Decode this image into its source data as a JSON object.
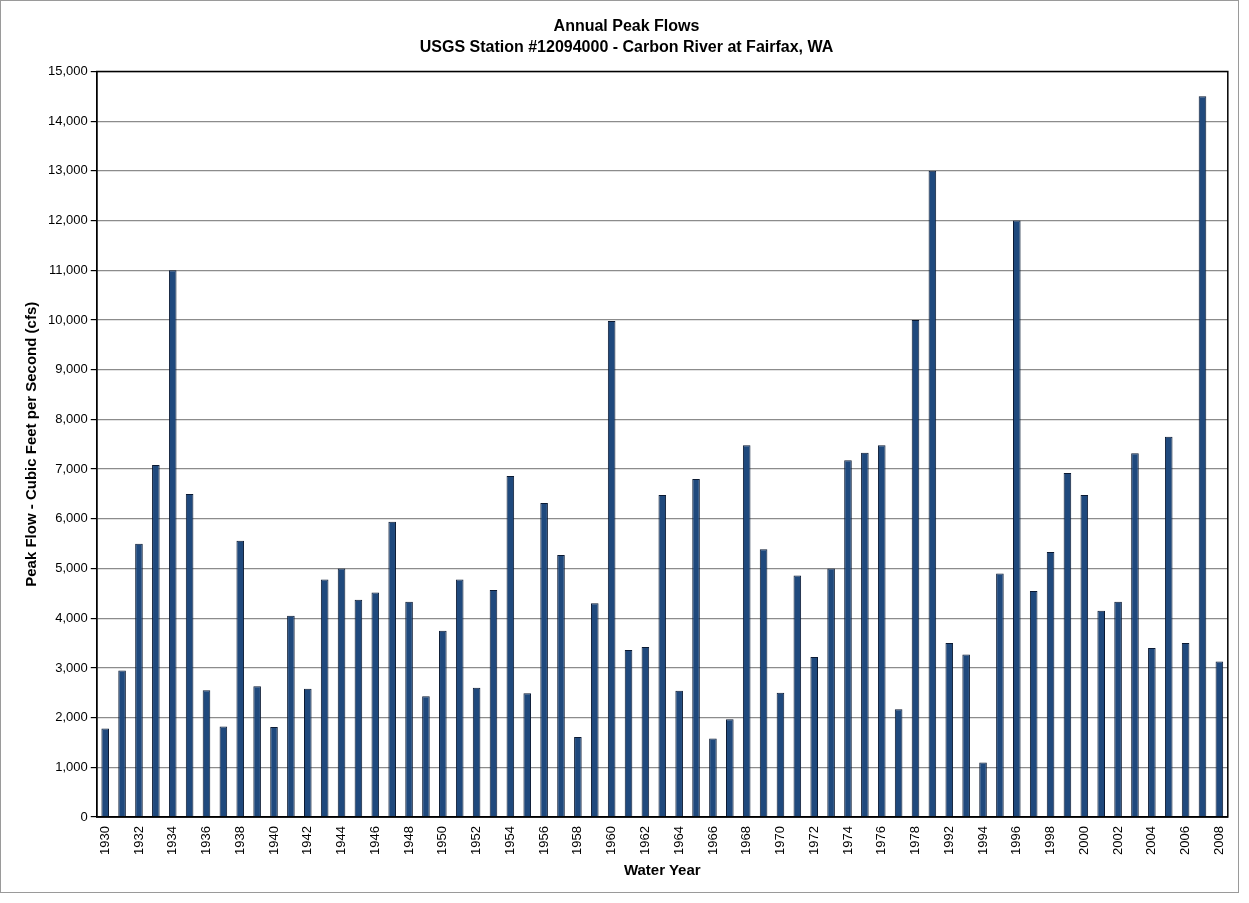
{
  "chart_data": {
    "type": "bar",
    "title": "Annual Peak Flows",
    "subtitle": "USGS Station #12094000 - Carbon River at Fairfax, WA",
    "xlabel": "Water Year",
    "ylabel": "Peak Flow - Cubic Feet per Second (cfs)",
    "categories": [
      "1930",
      null,
      "1932",
      null,
      "1934",
      null,
      "1936",
      null,
      "1938",
      null,
      "1940",
      null,
      "1942",
      null,
      "1944",
      null,
      "1946",
      null,
      "1948",
      null,
      "1950",
      null,
      "1952",
      null,
      "1954",
      null,
      "1956",
      null,
      "1958",
      null,
      "1960",
      null,
      "1962",
      null,
      "1964",
      null,
      "1966",
      null,
      "1968",
      null,
      "1970",
      null,
      "1972",
      null,
      "1974",
      null,
      "1976",
      null,
      "1978",
      null,
      "1992",
      null,
      "1994",
      null,
      "1996",
      null,
      "1998",
      null,
      "2000",
      null,
      "2002",
      null,
      "2004",
      null,
      "2006",
      null,
      "2008"
    ],
    "values": [
      1780,
      2950,
      5500,
      7080,
      11000,
      6500,
      2550,
      1820,
      5560,
      2630,
      1810,
      4050,
      2580,
      4780,
      5000,
      4370,
      4520,
      5940,
      4330,
      2430,
      3750,
      4780,
      2600,
      4570,
      6860,
      2490,
      6320,
      5270,
      1610,
      4300,
      9980,
      3360,
      3420,
      6480,
      2540,
      6800,
      1580,
      1970,
      7480,
      5390,
      2500,
      4860,
      3220,
      5000,
      7180,
      7330,
      7480,
      2170,
      10000,
      13000,
      3500,
      3270,
      1100,
      4900,
      12000,
      4550,
      5330,
      6920,
      6480,
      4150,
      4330,
      7320,
      3400,
      7650,
      3500,
      14500,
      3130
    ],
    "color": "#1f497d",
    "ylim": [
      0,
      15000
    ],
    "yticks": [
      0,
      {
        "value": 1000,
        "label": "1,000"
      },
      {
        "value": 2000,
        "label": "2,000"
      },
      {
        "value": 3000,
        "label": "3,000"
      },
      {
        "value": 4000,
        "label": "4,000"
      },
      {
        "value": 5000,
        "label": "5,000"
      },
      {
        "value": 6000,
        "label": "6,000"
      },
      {
        "value": 7000,
        "label": "7,000"
      },
      {
        "value": 8000,
        "label": "8,000"
      },
      {
        "value": 9000,
        "label": "9,000"
      },
      {
        "value": 10000,
        "label": "10,000"
      },
      {
        "value": 11000,
        "label": "11,000"
      },
      {
        "value": 12000,
        "label": "12,000"
      },
      {
        "value": 13000,
        "label": "13,000"
      },
      {
        "value": 14000,
        "label": "14,000"
      },
      {
        "value": 15000,
        "label": "15,000"
      }
    ],
    "grid": "y",
    "legend": false
  }
}
